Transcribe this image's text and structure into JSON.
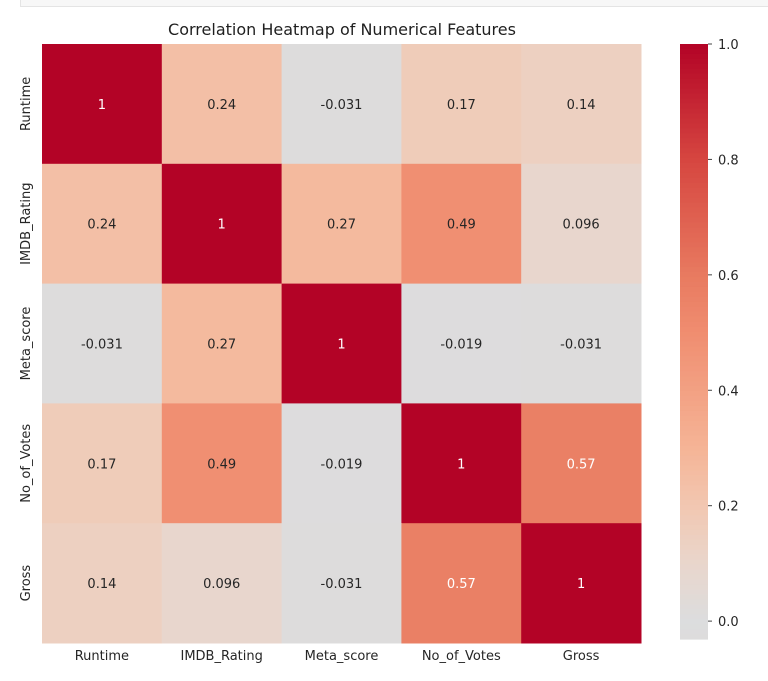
{
  "chart_data": {
    "type": "heatmap",
    "title": "Correlation Heatmap of Numerical Features",
    "x_labels": [
      "Runtime",
      "IMDB_Rating",
      "Meta_score",
      "No_of_Votes",
      "Gross"
    ],
    "y_labels": [
      "Runtime",
      "IMDB_Rating",
      "Meta_score",
      "No_of_Votes",
      "Gross"
    ],
    "values": [
      [
        1,
        0.24,
        -0.031,
        0.17,
        0.14
      ],
      [
        0.24,
        1,
        0.27,
        0.49,
        0.096
      ],
      [
        -0.031,
        0.27,
        1,
        -0.019,
        -0.031
      ],
      [
        0.17,
        0.49,
        -0.019,
        1,
        0.57
      ],
      [
        0.14,
        0.096,
        -0.031,
        0.57,
        1
      ]
    ],
    "annotations": [
      [
        "1",
        "0.24",
        "-0.031",
        "0.17",
        "0.14"
      ],
      [
        "0.24",
        "1",
        "0.27",
        "0.49",
        "0.096"
      ],
      [
        "-0.031",
        "0.27",
        "1",
        "-0.019",
        "-0.031"
      ],
      [
        "0.17",
        "0.49",
        "-0.019",
        "1",
        "0.57"
      ],
      [
        "0.14",
        "0.096",
        "-0.031",
        "0.57",
        "1"
      ]
    ],
    "colormap": "coolwarm",
    "value_range": [
      -0.031,
      1.0
    ],
    "colorbar_ticks": [
      0.0,
      0.2,
      0.4,
      0.6,
      0.8,
      1.0
    ],
    "colorbar_tick_labels": [
      "0.0",
      "0.2",
      "0.4",
      "0.6",
      "0.8",
      "1.0"
    ],
    "grid": false
  }
}
